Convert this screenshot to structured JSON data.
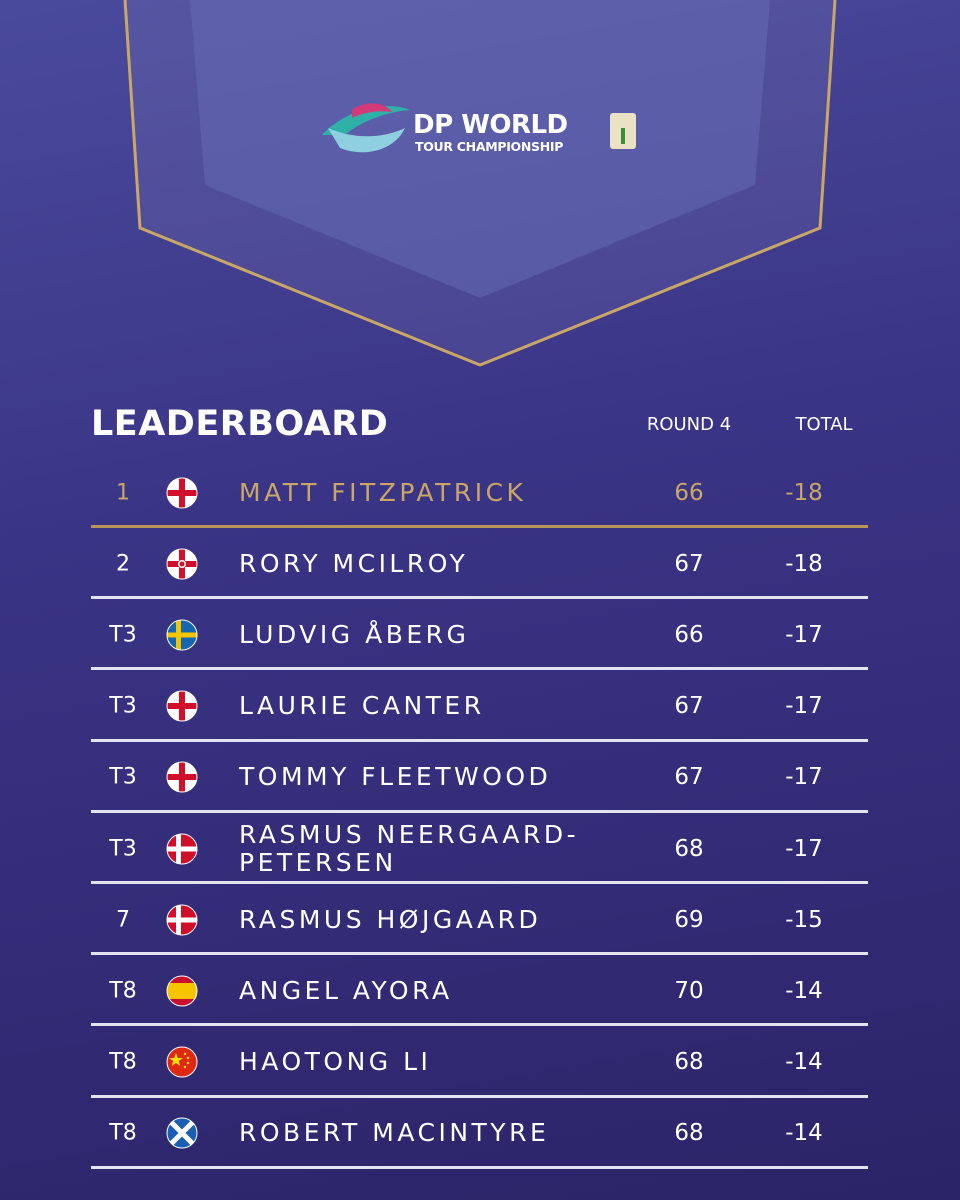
{
  "logo": {
    "line1": "DP WORLD",
    "line2": "TOUR CHAMPIONSHIP"
  },
  "header": {
    "title": "LEADERBOARD",
    "round": "ROUND 4",
    "total": "TOTAL"
  },
  "rows": [
    {
      "pos": "1",
      "name": "MATT FITZPATRICK",
      "round": 66,
      "total": -18
    },
    {
      "pos": "2",
      "name": "RORY MCILROY",
      "round": 67,
      "total": -18
    },
    {
      "pos": "T3",
      "name": "LUDVIG ÅBERG",
      "round": 66,
      "total": -17
    },
    {
      "pos": "T3",
      "name": "LAURIE CANTER",
      "round": 67,
      "total": -17
    },
    {
      "pos": "T3",
      "name": "TOMMY FLEETWOOD",
      "round": 67,
      "total": -17
    },
    {
      "pos": "T3",
      "name": "RASMUS NEERGAARD-PETERSEN",
      "round": 68,
      "total": -17
    },
    {
      "pos": "7",
      "name": "RASMUS HØJGAARD",
      "round": 69,
      "total": -15
    },
    {
      "pos": "T8",
      "name": "ANGEL AYORA",
      "round": 70,
      "total": -14
    },
    {
      "pos": "T8",
      "name": "HAOTONG LI",
      "round": 68,
      "total": -14
    },
    {
      "pos": "T8",
      "name": "ROBERT MACINTYRE",
      "round": 68,
      "total": -14
    }
  ]
}
